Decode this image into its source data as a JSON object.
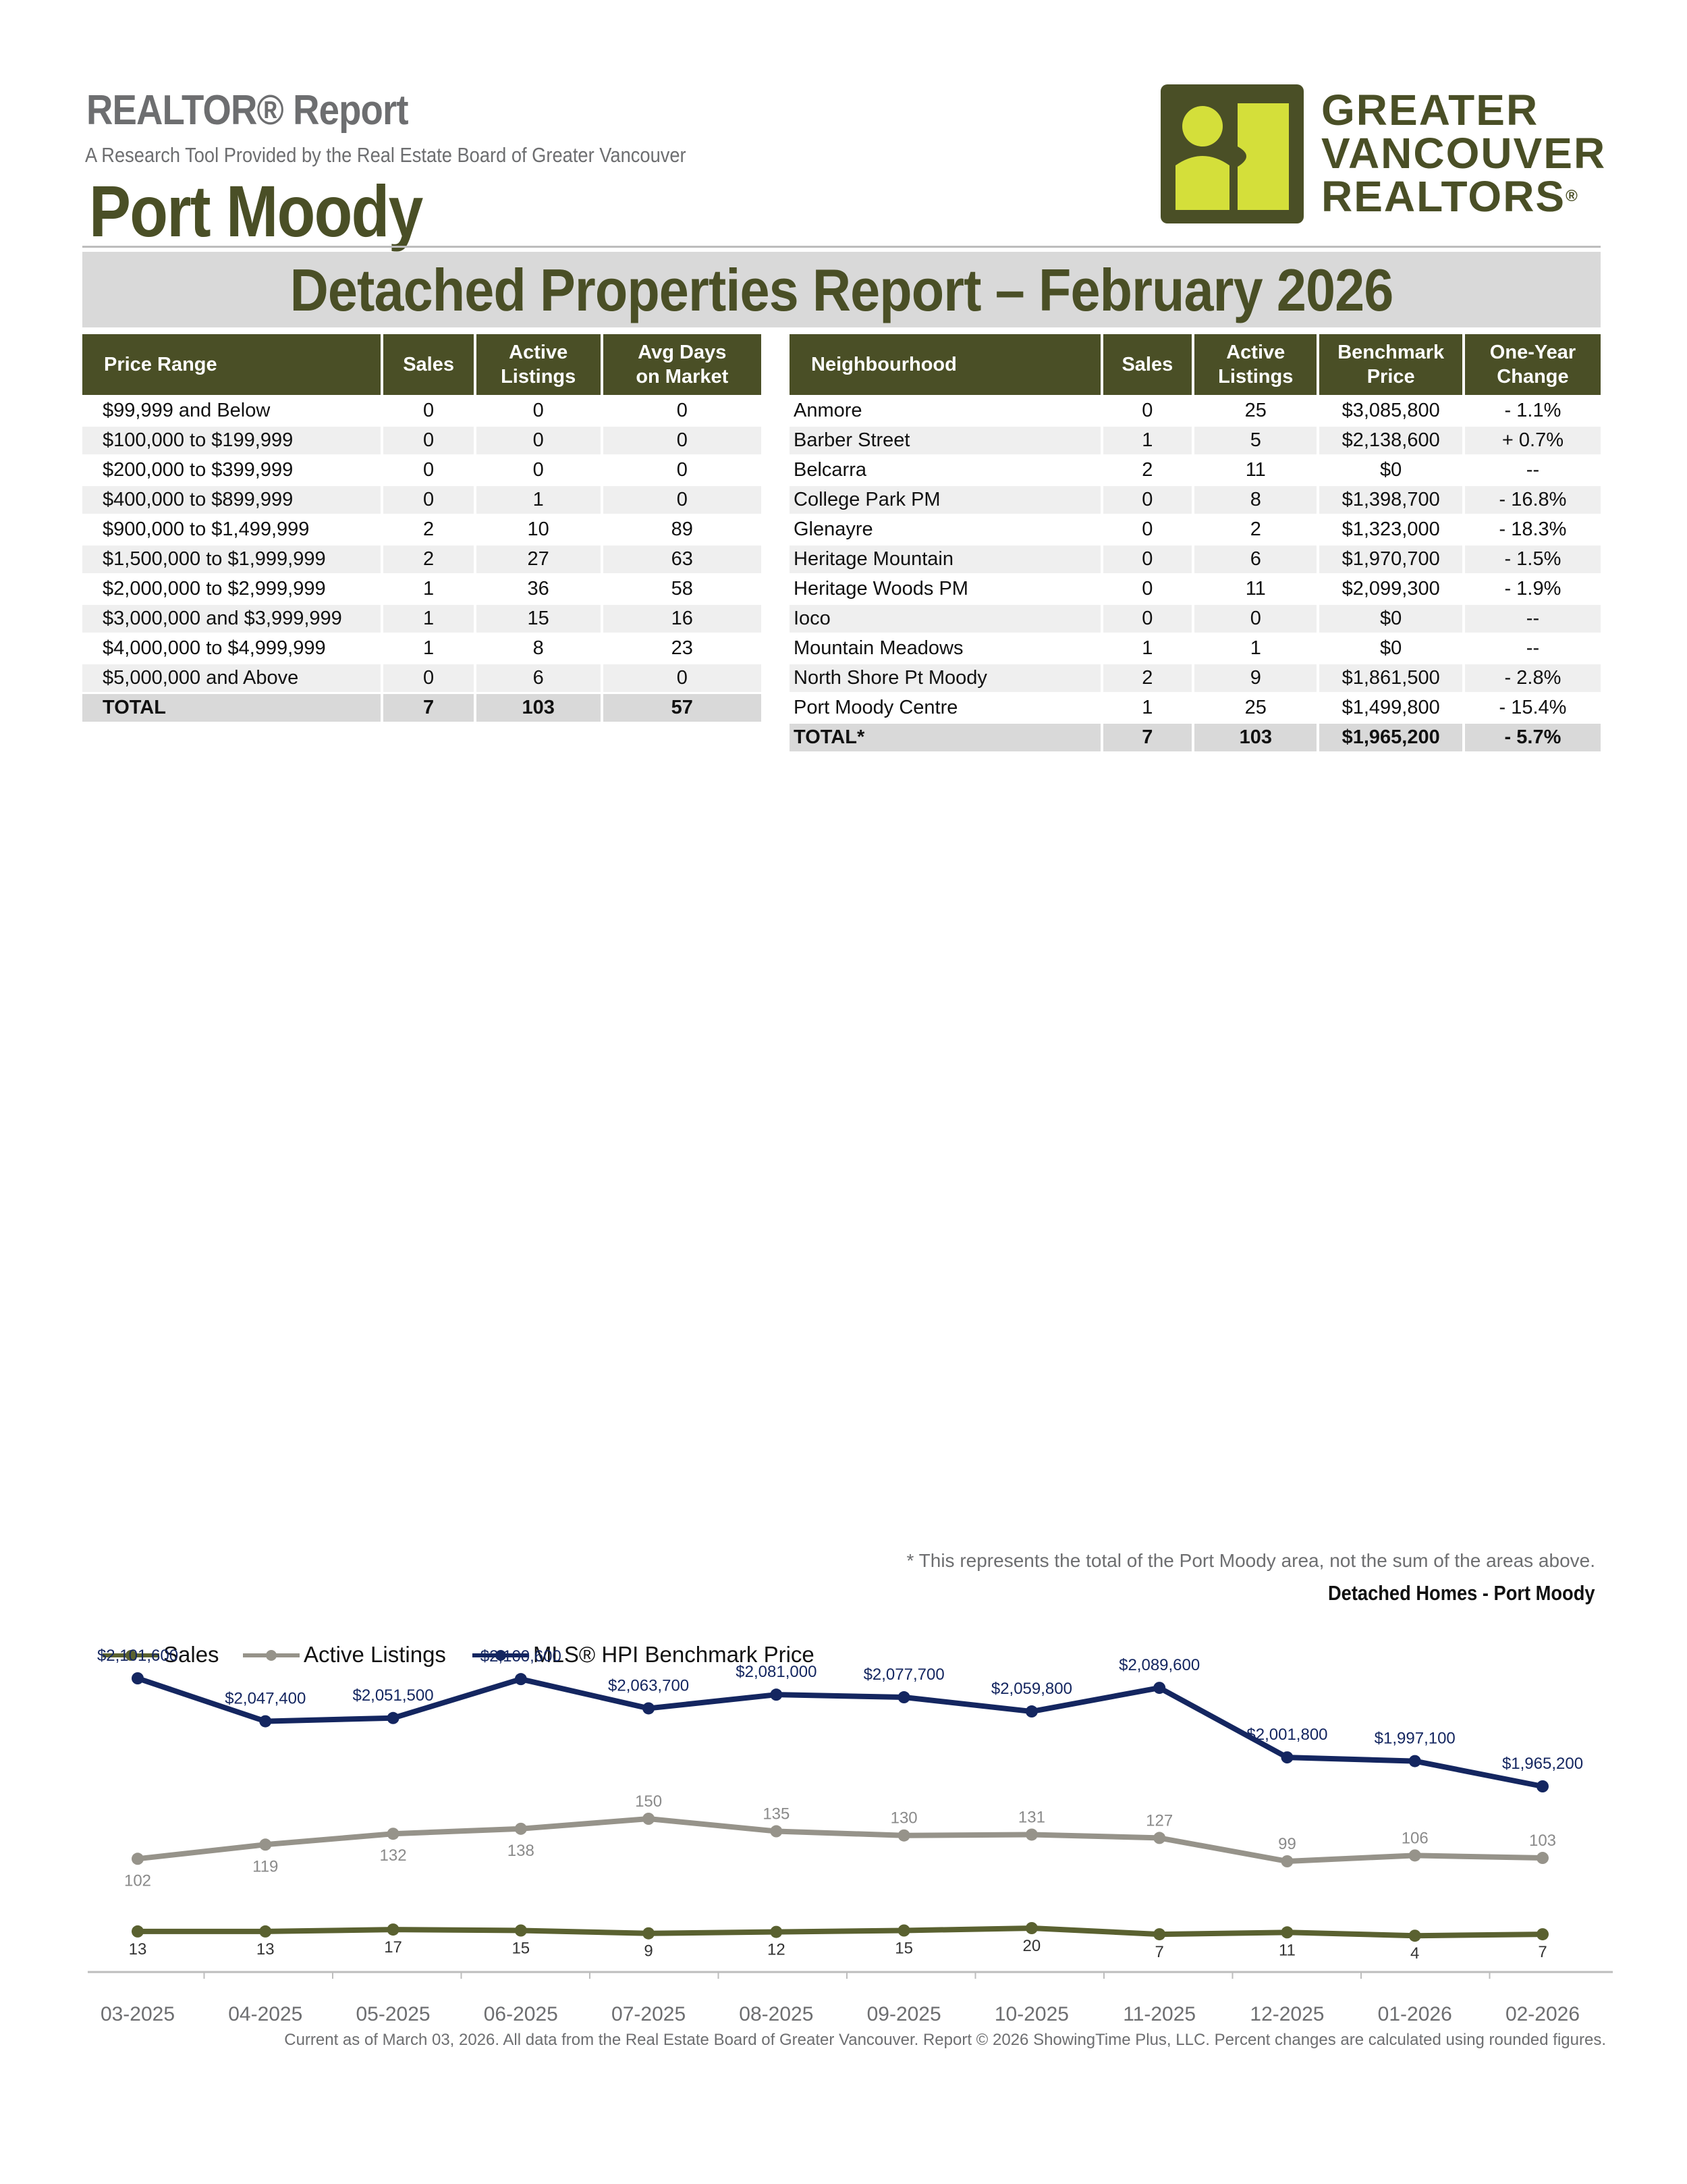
{
  "header": {
    "report_label": "REALTOR® Report",
    "subtitle": "A Research Tool Provided by the Real Estate Board of Greater Vancouver",
    "area": "Port Moody",
    "logo_lines": [
      "GREATER",
      "VANCOUVER",
      "REALTORS"
    ],
    "logo_reg": "®"
  },
  "banner_title": "Detached Properties Report – February 2026",
  "price_table": {
    "headers": [
      "Price Range",
      "Sales",
      "Active\nListings",
      "Avg Days\non Market"
    ],
    "rows": [
      [
        "$99,999 and Below",
        "0",
        "0",
        "0"
      ],
      [
        "$100,000 to $199,999",
        "0",
        "0",
        "0"
      ],
      [
        "$200,000 to $399,999",
        "0",
        "0",
        "0"
      ],
      [
        "$400,000 to $899,999",
        "0",
        "1",
        "0"
      ],
      [
        "$900,000 to $1,499,999",
        "2",
        "10",
        "89"
      ],
      [
        "$1,500,000 to $1,999,999",
        "2",
        "27",
        "63"
      ],
      [
        "$2,000,000 to $2,999,999",
        "1",
        "36",
        "58"
      ],
      [
        "$3,000,000 and $3,999,999",
        "1",
        "15",
        "16"
      ],
      [
        "$4,000,000 to $4,999,999",
        "1",
        "8",
        "23"
      ],
      [
        "$5,000,000 and Above",
        "0",
        "6",
        "0"
      ]
    ],
    "total": [
      "TOTAL",
      "7",
      "103",
      "57"
    ]
  },
  "hood_table": {
    "headers": [
      "Neighbourhood",
      "Sales",
      "Active\nListings",
      "Benchmark\nPrice",
      "One-Year\nChange"
    ],
    "rows": [
      [
        "Anmore",
        "0",
        "25",
        "$3,085,800",
        "- 1.1%"
      ],
      [
        "Barber Street",
        "1",
        "5",
        "$2,138,600",
        "+ 0.7%"
      ],
      [
        "Belcarra",
        "2",
        "11",
        "$0",
        "--"
      ],
      [
        "College Park PM",
        "0",
        "8",
        "$1,398,700",
        "- 16.8%"
      ],
      [
        "Glenayre",
        "0",
        "2",
        "$1,323,000",
        "- 18.3%"
      ],
      [
        "Heritage Mountain",
        "0",
        "6",
        "$1,970,700",
        "- 1.5%"
      ],
      [
        "Heritage Woods PM",
        "0",
        "11",
        "$2,099,300",
        "- 1.9%"
      ],
      [
        "Ioco",
        "0",
        "0",
        "$0",
        "--"
      ],
      [
        "Mountain Meadows",
        "1",
        "1",
        "$0",
        "--"
      ],
      [
        "North Shore Pt Moody",
        "2",
        "9",
        "$1,861,500",
        "- 2.8%"
      ],
      [
        "Port Moody Centre",
        "1",
        "25",
        "$1,499,800",
        "- 15.4%"
      ]
    ],
    "total": [
      "TOTAL*",
      "7",
      "103",
      "$1,965,200",
      "- 5.7%"
    ]
  },
  "footnote": "* This represents the total of the Port Moody area, not the sum of the areas above.",
  "chart_title": "Detached Homes - Port Moody",
  "colors": {
    "olive": "#4a4f26",
    "lime": "#d4df3a",
    "sales": "#5a6130",
    "active": "#96938a",
    "benchmark": "#142660"
  },
  "chart_data": {
    "type": "line",
    "title": "Detached Homes - Port Moody",
    "categories": [
      "03-2025",
      "04-2025",
      "05-2025",
      "06-2025",
      "07-2025",
      "08-2025",
      "09-2025",
      "10-2025",
      "11-2025",
      "12-2025",
      "01-2026",
      "02-2026"
    ],
    "series": [
      {
        "name": "Sales",
        "color": "#5a6130",
        "values": [
          13,
          13,
          17,
          15,
          9,
          12,
          15,
          20,
          7,
          11,
          4,
          7
        ],
        "labels": [
          "13",
          "13",
          "17",
          "15",
          "9",
          "12",
          "15",
          "20",
          "7",
          "11",
          "4",
          "7"
        ]
      },
      {
        "name": "Active Listings",
        "color": "#96938a",
        "values": [
          102,
          119,
          132,
          138,
          150,
          135,
          130,
          131,
          127,
          99,
          106,
          103
        ],
        "labels": [
          "102",
          "119",
          "132",
          "138",
          "150",
          "135",
          "130",
          "131",
          "127",
          "99",
          "106",
          "103"
        ]
      },
      {
        "name": "MLS® HPI Benchmark Price",
        "color": "#142660",
        "values": [
          2101600,
          2047400,
          2051500,
          2100600,
          2063700,
          2081000,
          2077700,
          2059800,
          2089600,
          2001800,
          1997100,
          1965200
        ],
        "labels": [
          "$2,101,600",
          "$2,047,400",
          "$2,051,500",
          "$2,100,600",
          "$2,063,700",
          "$2,081,000",
          "$2,077,700",
          "$2,059,800",
          "$2,089,600",
          "$2,001,800",
          "$1,997,100",
          "$1,965,200"
        ]
      }
    ],
    "legend_position": "top-left",
    "grid": false
  },
  "bottom_note": "Current as of March 03, 2026. All data from the Real Estate Board of Greater Vancouver.  Report © 2026 ShowingTime Plus, LLC. Percent changes are calculated using rounded figures."
}
